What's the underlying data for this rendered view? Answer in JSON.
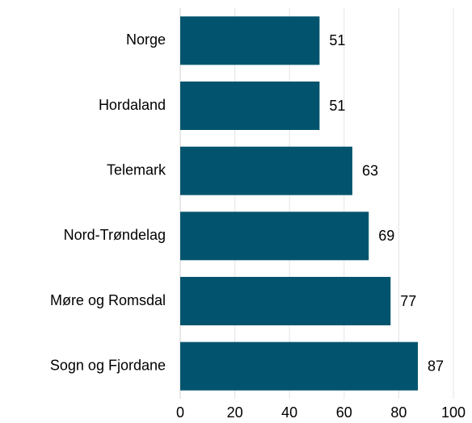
{
  "chart_data": {
    "type": "hbar",
    "categories": [
      "Norge",
      "Hordaland",
      "Telemark",
      "Nord-Trøndelag",
      "Møre og Romsdal",
      "Sogn og Fjordane"
    ],
    "values": [
      51,
      51,
      63,
      69,
      77,
      87
    ],
    "color": "#02546e",
    "xlim": [
      0,
      100
    ],
    "xticks": [
      0,
      20,
      40,
      60,
      80,
      100
    ],
    "grid": true
  }
}
